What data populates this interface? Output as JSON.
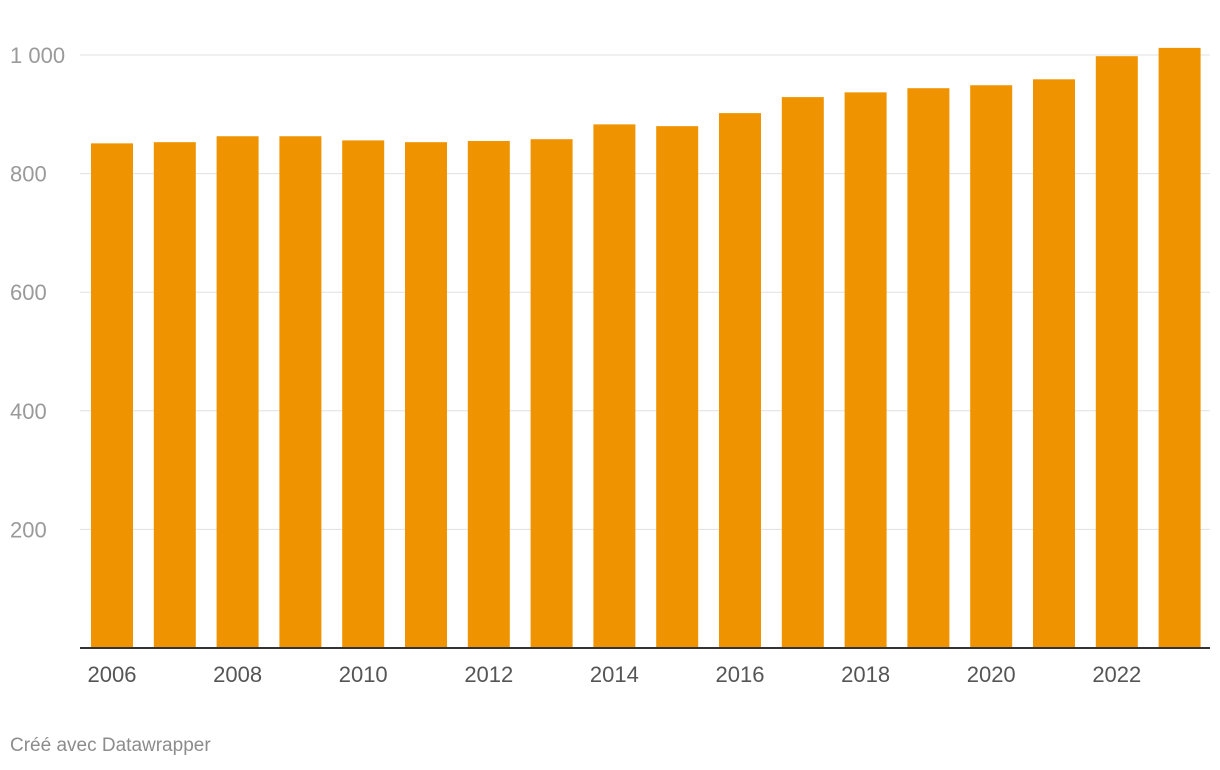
{
  "chart_data": {
    "type": "bar",
    "categories": [
      "2006",
      "2007",
      "2008",
      "2009",
      "2010",
      "2011",
      "2012",
      "2013",
      "2014",
      "2015",
      "2016",
      "2017",
      "2018",
      "2019",
      "2020",
      "2021",
      "2022",
      "2023"
    ],
    "values": [
      851,
      853,
      863,
      863,
      856,
      853,
      855,
      858,
      883,
      880,
      902,
      929,
      937,
      944,
      949,
      959,
      998,
      1012
    ],
    "x_tick_labels": [
      "2006",
      "2008",
      "2010",
      "2012",
      "2014",
      "2016",
      "2018",
      "2020",
      "2022"
    ],
    "y_ticks": [
      200,
      400,
      600,
      800,
      1000
    ],
    "y_tick_labels": [
      "200",
      "400",
      "600",
      "800",
      "1 000"
    ],
    "ylim": [
      0,
      1000
    ],
    "grid": true,
    "title": "",
    "xlabel": "",
    "ylabel": "",
    "colors": {
      "bar": "#f09300",
      "grid": "#e0e0e0",
      "axis": "#333333",
      "tick_text": "#9a9a9a",
      "x_tick_text": "#555555"
    }
  },
  "footer": {
    "credit": "Créé avec Datawrapper"
  }
}
